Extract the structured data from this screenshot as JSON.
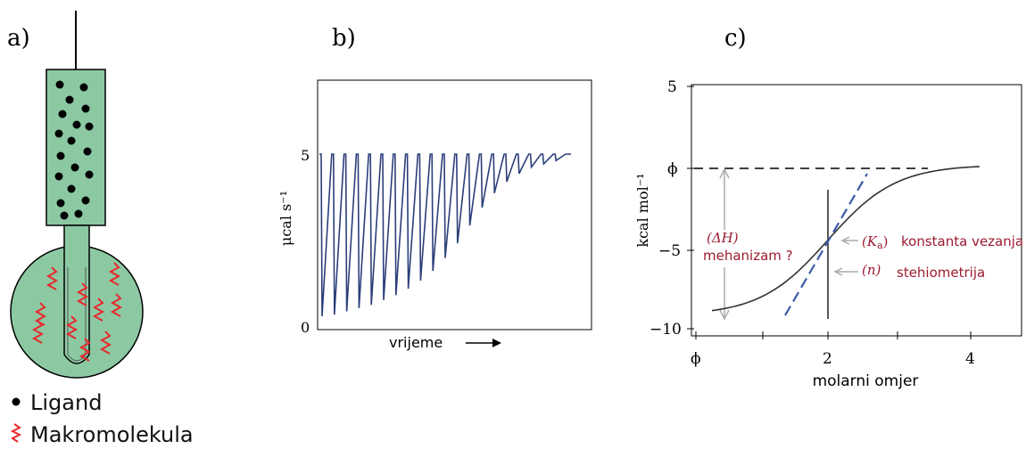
{
  "panels": {
    "a": {
      "label": "a)"
    },
    "b": {
      "label": "b)"
    },
    "c": {
      "label": "c)"
    }
  },
  "legend": {
    "ligand": "Ligand",
    "macromolecule": "Makromolekula"
  },
  "colors": {
    "syringe_fill": "#8cc9a3",
    "ligand_dot": "#000000",
    "macromolecule": "#e8282d",
    "trace": "#2c3e7a",
    "annotation": "#9b1b30",
    "fit_dashed": "#3a5aa8"
  },
  "panel_b": {
    "y_label": "μcal s⁻¹",
    "y_tick_5": "5",
    "y_tick_0": "0",
    "x_label": "vrijeme",
    "peak_depths_fraction": [
      1.0,
      0.99,
      0.97,
      0.95,
      0.93,
      0.9,
      0.87,
      0.83,
      0.78,
      0.72,
      0.64,
      0.55,
      0.44,
      0.33,
      0.24,
      0.17,
      0.12,
      0.08,
      0.06,
      0.04
    ]
  },
  "panel_c": {
    "y_label": "kcal mol⁻¹",
    "y_ticks": [
      "5",
      "ϕ",
      "−5",
      "−10"
    ],
    "x_ticks": [
      "ϕ",
      "2",
      "4"
    ],
    "x_label": "molarni omjer",
    "annot_dH_symbol": "(ΔH)",
    "annot_dH_text": "mehanizam ?",
    "annot_Ka_symbol": "(K",
    "annot_Ka_sub": "a",
    "annot_Ka_close": ")",
    "annot_Ka_text": "konstanta vezanja",
    "annot_n_symbol": "(n)",
    "annot_n_text": "stehiometrija"
  }
}
